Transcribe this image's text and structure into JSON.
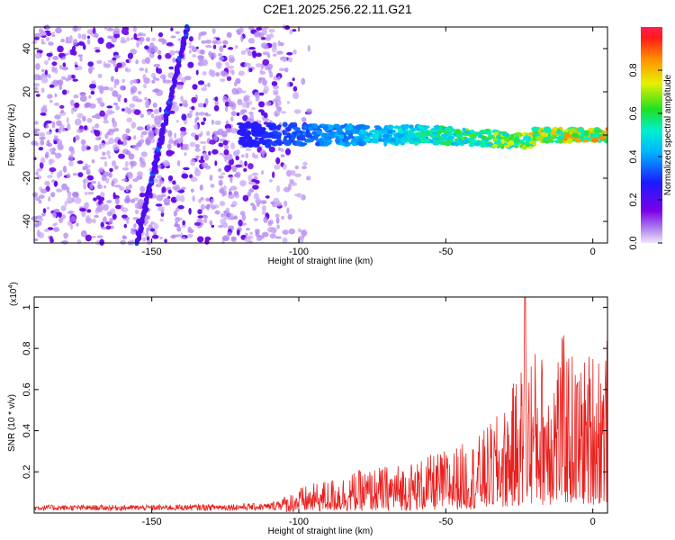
{
  "title": "C2E1.2025.256.22.11.G21",
  "colors": {
    "snr_line": "#e8201e",
    "axis": "#000000",
    "scatter_faint": "#c9a6f2",
    "scatter_dark": "#6a00e6",
    "track": "#3a1ee6"
  },
  "chart_data": [
    {
      "type": "heatmap",
      "xlabel": "Height of straight line (km)",
      "ylabel": "Frequency (Hz)",
      "xlim": [
        -190,
        5
      ],
      "ylim": [
        -50,
        50
      ],
      "xticks": [
        -150,
        -100,
        -50,
        0
      ],
      "yticks": [
        -40,
        -20,
        0,
        20,
        40
      ],
      "colorbar": {
        "label": "Normalized spectral amplitude",
        "range": [
          0,
          1
        ],
        "ticks": [
          0.0,
          0.2,
          0.4,
          0.6,
          0.8
        ],
        "colormap": "rainbow (purple → blue → cyan → green → yellow → orange → red)"
      },
      "features": {
        "diagonal_track": {
          "from": [
            -155,
            -50
          ],
          "to": [
            -138,
            50
          ],
          "amplitude": 0.25
        },
        "signal_band": {
          "x_range": [
            -120,
            5
          ],
          "frequency_center_hz": 0,
          "width_hz": 8,
          "amplitude_start": 0.3,
          "amplitude_end": 0.95
        },
        "noise_region": {
          "x_range": [
            -190,
            -105
          ],
          "amplitude": "0.05-0.2"
        }
      }
    },
    {
      "type": "line",
      "xlabel": "Height of straight line (km)",
      "ylabel": "SNR (10 * v/v)",
      "y_scale_note": "(x10",
      "y_scale_exp": "4",
      "y_scale_close": ")",
      "xlim": [
        -190,
        5
      ],
      "ylim": [
        0,
        1.05
      ],
      "xticks": [
        -150,
        -100,
        -50,
        0
      ],
      "yticks": [
        0.2,
        0.4,
        0.6,
        0.8,
        1.0
      ],
      "envelope": {
        "x": [
          -190,
          -150,
          -110,
          -100,
          -80,
          -60,
          -40,
          -30,
          -22,
          -15,
          -10,
          -5,
          0,
          5
        ],
        "y": [
          0.03,
          0.03,
          0.04,
          0.12,
          0.2,
          0.25,
          0.35,
          0.5,
          0.8,
          0.75,
          0.85,
          0.7,
          0.8,
          0.85
        ]
      },
      "peak": {
        "x": -23,
        "y": 1.05
      }
    }
  ]
}
